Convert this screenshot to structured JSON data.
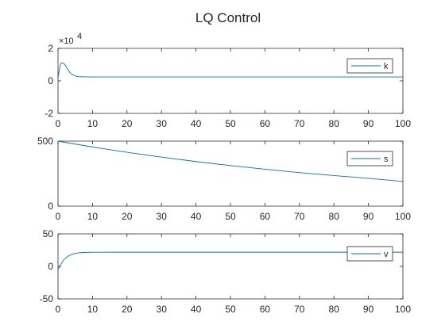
{
  "figure": {
    "title": "LQ Control",
    "background": "#ffffff",
    "axis_color": "#262626",
    "line_color": "#0072BD"
  },
  "chart_data": [
    {
      "type": "line",
      "title": "LQ Control",
      "xlabel": "",
      "ylabel": "",
      "xlim": [
        0,
        100
      ],
      "ylim": [
        -20000,
        20000
      ],
      "xticks": [
        0,
        10,
        20,
        30,
        40,
        50,
        60,
        70,
        80,
        90,
        100
      ],
      "yticks": [
        -20000,
        0,
        20000
      ],
      "yticklabels": [
        "-2",
        "0",
        "2"
      ],
      "y_exponent_label": "×10",
      "y_exponent_power": "4",
      "grid": false,
      "legend_position": "right",
      "series": [
        {
          "name": "k",
          "x": [
            0,
            0.3,
            0.6,
            1,
            1.5,
            2,
            2.5,
            3,
            3.5,
            4,
            5,
            6,
            7,
            8,
            10,
            15,
            20,
            30,
            40,
            50,
            60,
            70,
            80,
            90,
            100
          ],
          "y": [
            1500,
            6000,
            9500,
            11000,
            11000,
            10000,
            8200,
            6500,
            5000,
            4000,
            3000,
            2600,
            2500,
            2450,
            2400,
            2400,
            2400,
            2400,
            2400,
            2400,
            2400,
            2400,
            2400,
            2400,
            2400
          ]
        }
      ]
    },
    {
      "type": "line",
      "xlabel": "",
      "ylabel": "",
      "xlim": [
        0,
        100
      ],
      "ylim": [
        0,
        500
      ],
      "xticks": [
        0,
        10,
        20,
        30,
        40,
        50,
        60,
        70,
        80,
        90,
        100
      ],
      "yticks": [
        0,
        500
      ],
      "yticklabels": [
        "0",
        "500"
      ],
      "grid": false,
      "legend_position": "right",
      "series": [
        {
          "name": "s",
          "x": [
            0,
            10,
            20,
            30,
            40,
            50,
            60,
            70,
            80,
            90,
            100
          ],
          "y": [
            500,
            455,
            414,
            377,
            343,
            312,
            284,
            258,
            235,
            214,
            190
          ]
        }
      ]
    },
    {
      "type": "line",
      "xlabel": "",
      "ylabel": "",
      "xlim": [
        0,
        100
      ],
      "ylim": [
        -50,
        50
      ],
      "xticks": [
        0,
        10,
        20,
        30,
        40,
        50,
        60,
        70,
        80,
        90,
        100
      ],
      "yticks": [
        -50,
        0,
        50
      ],
      "yticklabels": [
        "-50",
        "0",
        "50"
      ],
      "grid": false,
      "legend_position": "right",
      "series": [
        {
          "name": "v",
          "x": [
            0,
            0.5,
            1,
            1.5,
            2,
            3,
            4,
            5,
            6,
            7,
            8,
            10,
            15,
            20,
            30,
            40,
            50,
            60,
            70,
            80,
            90,
            100
          ],
          "y": [
            -5,
            0,
            5,
            9,
            12,
            16,
            18.5,
            20,
            20.8,
            21.2,
            21.5,
            21.7,
            21.8,
            21.8,
            21.8,
            21.8,
            21.8,
            21.8,
            21.8,
            21.8,
            21.8,
            21.8
          ]
        }
      ]
    }
  ]
}
